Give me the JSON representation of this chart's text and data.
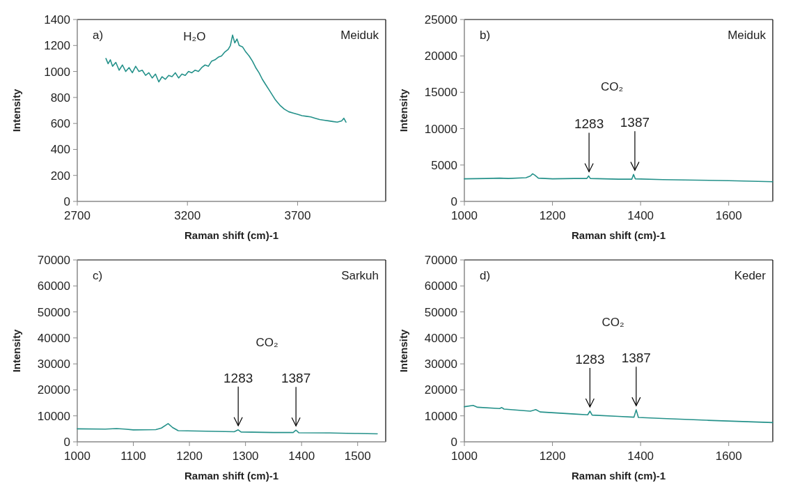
{
  "chart_data": [
    {
      "type": "line",
      "xlabel": "Raman shift (cm)-1",
      "ylabel": "Intensity",
      "color": "#24918a",
      "xlim": [
        2700,
        4100
      ],
      "xticks": [
        2700,
        3200,
        3700
      ],
      "ylim": [
        0,
        1400
      ],
      "yticks": [
        0,
        200,
        400,
        600,
        800,
        1000,
        1200,
        1400
      ],
      "x": [
        2830,
        2840,
        2850,
        2860,
        2875,
        2890,
        2905,
        2920,
        2935,
        2950,
        2965,
        2980,
        2995,
        3010,
        3025,
        3040,
        3055,
        3070,
        3085,
        3100,
        3115,
        3130,
        3145,
        3160,
        3175,
        3190,
        3205,
        3220,
        3235,
        3250,
        3265,
        3280,
        3295,
        3310,
        3325,
        3340,
        3355,
        3370,
        3385,
        3395,
        3405,
        3415,
        3425,
        3435,
        3450,
        3465,
        3480,
        3495,
        3510,
        3525,
        3540,
        3555,
        3570,
        3585,
        3600,
        3620,
        3640,
        3660,
        3680,
        3700,
        3720,
        3740,
        3760,
        3780,
        3800,
        3820,
        3840,
        3860,
        3880,
        3900,
        3910,
        3920
      ],
      "values": [
        1100,
        1060,
        1090,
        1040,
        1070,
        1010,
        1050,
        1000,
        1030,
        990,
        1040,
        1000,
        1010,
        970,
        990,
        950,
        980,
        920,
        960,
        940,
        970,
        960,
        990,
        950,
        980,
        970,
        1000,
        990,
        1010,
        1000,
        1030,
        1050,
        1040,
        1080,
        1090,
        1110,
        1120,
        1150,
        1170,
        1200,
        1280,
        1220,
        1250,
        1200,
        1190,
        1150,
        1120,
        1080,
        1030,
        990,
        940,
        900,
        860,
        820,
        780,
        740,
        710,
        690,
        680,
        670,
        660,
        655,
        650,
        640,
        630,
        625,
        620,
        615,
        610,
        620,
        640,
        610
      ],
      "annotations": [
        "a)",
        "Meiduk",
        "H₂O"
      ]
    },
    {
      "type": "line",
      "xlabel": "Raman shift (cm)-1",
      "ylabel": "Intensity",
      "color": "#24918a",
      "xlim": [
        1000,
        1700
      ],
      "xticks": [
        1000,
        1200,
        1400,
        1600
      ],
      "ylim": [
        0,
        25000
      ],
      "yticks": [
        0,
        5000,
        10000,
        15000,
        20000,
        25000
      ],
      "x": [
        1000,
        1050,
        1080,
        1100,
        1140,
        1150,
        1155,
        1160,
        1168,
        1200,
        1250,
        1278,
        1282,
        1286,
        1350,
        1380,
        1384,
        1388,
        1450,
        1500,
        1600,
        1700
      ],
      "values": [
        3100,
        3150,
        3200,
        3150,
        3250,
        3500,
        3800,
        3600,
        3200,
        3100,
        3150,
        3150,
        3500,
        3150,
        3050,
        3050,
        3700,
        3100,
        3000,
        2950,
        2850,
        2700
      ],
      "annotations": [
        "b)",
        "Meiduk",
        "CO₂",
        {
          "text": "1283",
          "x": 1283,
          "y": 3500
        },
        {
          "text": "1387",
          "x": 1387,
          "y": 3700
        }
      ]
    },
    {
      "type": "line",
      "xlabel": "Raman shift (cm)-1",
      "ylabel": "Intensity",
      "color": "#24918a",
      "xlim": [
        1000,
        1550
      ],
      "xticks": [
        1000,
        1100,
        1200,
        1300,
        1400,
        1500
      ],
      "ylim": [
        0,
        70000
      ],
      "yticks": [
        0,
        10000,
        20000,
        30000,
        40000,
        50000,
        60000,
        70000
      ],
      "x": [
        1000,
        1050,
        1070,
        1085,
        1100,
        1140,
        1150,
        1162,
        1170,
        1180,
        1230,
        1280,
        1287,
        1292,
        1350,
        1385,
        1390,
        1395,
        1450,
        1500,
        1535
      ],
      "values": [
        5000,
        4900,
        5100,
        4900,
        4600,
        4700,
        5300,
        7000,
        5500,
        4300,
        4100,
        3900,
        4600,
        3800,
        3600,
        3600,
        4500,
        3500,
        3400,
        3200,
        3100
      ],
      "annotations": [
        "c)",
        "Sarkuh",
        "CO₂",
        {
          "text": "1283",
          "x": 1287,
          "y": 4600
        },
        {
          "text": "1387",
          "x": 1390,
          "y": 4500
        }
      ]
    },
    {
      "type": "line",
      "xlabel": "Raman shift (cm)-1",
      "ylabel": "Intensity",
      "color": "#24918a",
      "xlim": [
        1000,
        1700
      ],
      "xticks": [
        1000,
        1200,
        1400,
        1600
      ],
      "ylim": [
        0,
        70000
      ],
      "yticks": [
        0,
        10000,
        20000,
        30000,
        40000,
        50000,
        60000,
        70000
      ],
      "x": [
        1000,
        1020,
        1030,
        1080,
        1085,
        1090,
        1150,
        1162,
        1172,
        1250,
        1280,
        1285,
        1290,
        1350,
        1385,
        1390,
        1395,
        1450,
        1550,
        1700
      ],
      "values": [
        13500,
        14000,
        13300,
        12800,
        13200,
        12600,
        11800,
        12400,
        11500,
        10700,
        10400,
        11800,
        10300,
        9800,
        9500,
        12300,
        9400,
        9000,
        8300,
        7400
      ],
      "annotations": [
        "d)",
        "Keder",
        "CO₂",
        {
          "text": "1283",
          "x": 1285,
          "y": 11800
        },
        {
          "text": "1387",
          "x": 1390,
          "y": 12300
        }
      ]
    }
  ]
}
